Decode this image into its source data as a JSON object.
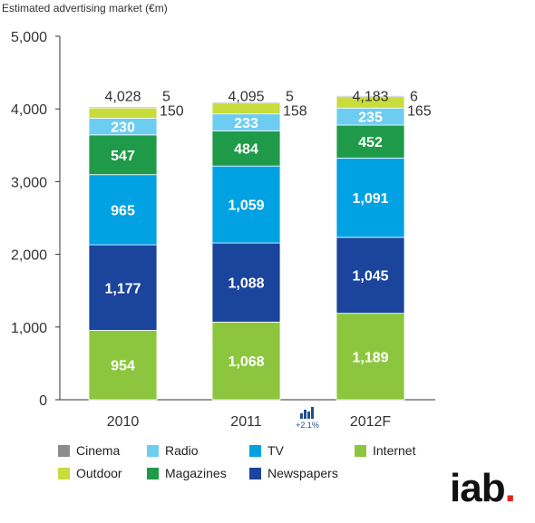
{
  "title": "Estimated advertising market (€m)",
  "colors": {
    "Cinema": "#8c8c8c",
    "Radio": "#6dcdf0",
    "TV": "#00a2e3",
    "Internet": "#8cc63f",
    "Outdoor": "#c8dc3c",
    "Magazines": "#1f9a48",
    "Newspapers": "#1b449c"
  },
  "chart_data": {
    "type": "bar",
    "stacked": true,
    "categories": [
      "2010",
      "2011",
      "2012F"
    ],
    "totals": [
      "4,028",
      "4,095",
      "4,183"
    ],
    "ylim": [
      0,
      5000
    ],
    "yticks": [
      "0",
      "1,000",
      "2,000",
      "3,000",
      "4,000",
      "5,000"
    ],
    "ytick_values": [
      0,
      1000,
      2000,
      3000,
      4000,
      5000
    ],
    "series": [
      {
        "name": "Internet",
        "values": [
          954,
          1068,
          1189
        ],
        "labels": [
          "954",
          "1,068",
          "1,189"
        ]
      },
      {
        "name": "Newspapers",
        "values": [
          1177,
          1088,
          1045
        ],
        "labels": [
          "1,177",
          "1,088",
          "1,045"
        ]
      },
      {
        "name": "TV",
        "values": [
          965,
          1059,
          1091
        ],
        "labels": [
          "965",
          "1,059",
          "1,091"
        ]
      },
      {
        "name": "Magazines",
        "values": [
          547,
          484,
          452
        ],
        "labels": [
          "547",
          "484",
          "452"
        ]
      },
      {
        "name": "Radio",
        "values": [
          230,
          233,
          235
        ],
        "labels": [
          "230",
          "233",
          "235"
        ]
      },
      {
        "name": "Outdoor",
        "values": [
          150,
          158,
          165
        ],
        "labels": [
          "150",
          "158",
          "165"
        ]
      },
      {
        "name": "Cinema",
        "values": [
          5,
          5,
          6
        ],
        "labels": [
          "5",
          "5",
          "6"
        ]
      }
    ],
    "legend_order": [
      "Cinema",
      "Radio",
      "TV",
      "Internet",
      "Outdoor",
      "Magazines",
      "Newspapers"
    ],
    "annotation": "+2.1%"
  },
  "logo": {
    "text": "iab",
    "dot": "."
  }
}
